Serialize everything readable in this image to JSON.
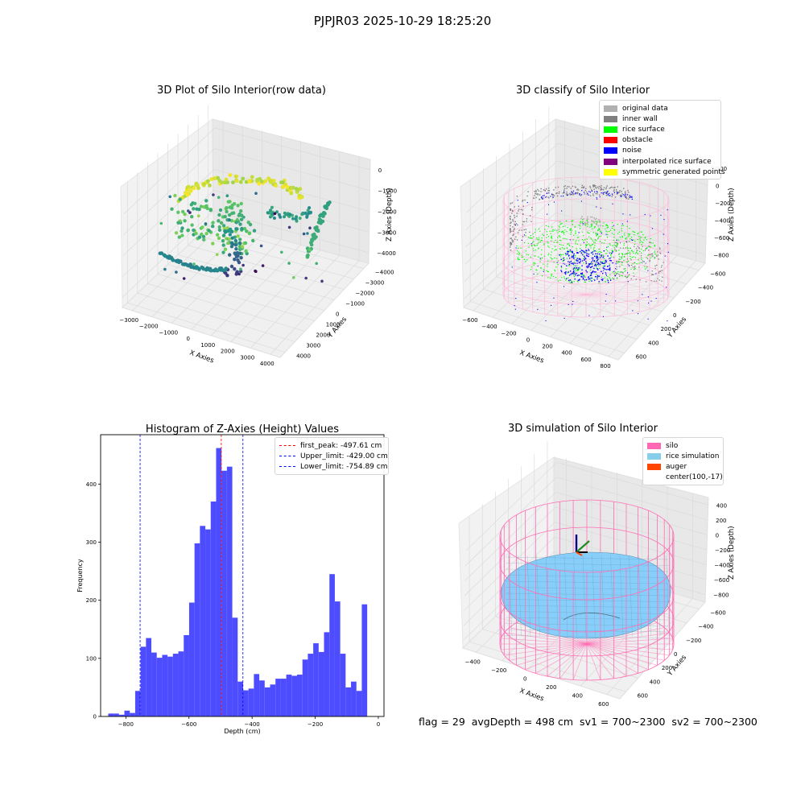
{
  "figure": {
    "suptitle": "PJPJR03 2025-10-29 18:25:20",
    "status_line": "flag = 29  avgDepth = 498 cm  sv1 = 700~2300  sv2 = 700~2300"
  },
  "colors": {
    "histogram_bar": "#4d4dff",
    "silo_wire": "#ff6eb4",
    "rice_fill": "#87cefa",
    "inner_wall": "#808080",
    "rice_surface": "#00ff00",
    "noise": "#0000ff"
  },
  "chart_data": [
    {
      "type": "scatter",
      "title": "3D Plot of Silo Interior(row data)",
      "xlabel": "X Axies",
      "ylabel": "Y Axies",
      "zlabel": "Z Axies (Depth)",
      "x_ticks": [
        "−3000",
        "−2000",
        "−1000",
        "0",
        "1000",
        "2000",
        "3000",
        "4000"
      ],
      "y_ticks": [
        "−4000",
        "−3000",
        "−2000",
        "−1000",
        "0",
        "1000",
        "2000",
        "3000",
        "4000"
      ],
      "z_ticks": [
        "0",
        "−1000",
        "−2000",
        "−3000",
        "−4000"
      ],
      "colormap": "viridis"
    },
    {
      "type": "scatter",
      "title": "3D classify of Silo Interior",
      "xlabel": "X Axies",
      "ylabel": "Y Axies",
      "zlabel": "Z Axies (Depth)",
      "x_ticks": [
        "−600",
        "−400",
        "−200",
        "0",
        "200",
        "400",
        "600",
        "800"
      ],
      "y_ticks": [
        "−600",
        "−400",
        "−200",
        "0",
        "200",
        "400",
        "600"
      ],
      "z_ticks": [
        "200",
        "0",
        "−200",
        "−400",
        "−600",
        "−800"
      ],
      "z_top_partial": "00",
      "legend": [
        {
          "label": "original data",
          "color": "#b0b0b0"
        },
        {
          "label": "inner wall",
          "color": "#808080"
        },
        {
          "label": "rice surface",
          "color": "#00ff00"
        },
        {
          "label": "obstacle",
          "color": "#ff0000"
        },
        {
          "label": "noise",
          "color": "#0000ff"
        },
        {
          "label": "interpolated rice surface",
          "color": "#800080"
        },
        {
          "label": "symmetric generated points",
          "color": "#ffff00"
        }
      ]
    },
    {
      "type": "bar",
      "title": "Histogram of Z-Axies (Height) Values",
      "xlabel": "Depth (cm)",
      "ylabel": "Frequency",
      "xlim": [
        -880,
        18
      ],
      "ylim": [
        0,
        485
      ],
      "x_ticks": [
        {
          "v": -800,
          "label": "−800"
        },
        {
          "v": -600,
          "label": "−600"
        },
        {
          "v": -400,
          "label": "−400"
        },
        {
          "v": -200,
          "label": "−200"
        },
        {
          "v": 0,
          "label": "0"
        }
      ],
      "y_ticks": [
        {
          "v": 0,
          "label": "0"
        },
        {
          "v": 100,
          "label": "100"
        },
        {
          "v": 200,
          "label": "200"
        },
        {
          "v": 300,
          "label": "300"
        },
        {
          "v": 400,
          "label": "400"
        }
      ],
      "bin_start": -856,
      "bin_width": 17.1,
      "values": [
        5,
        5,
        3,
        10,
        6,
        44,
        120,
        135,
        110,
        101,
        106,
        103,
        108,
        112,
        140,
        196,
        298,
        328,
        322,
        370,
        462,
        423,
        430,
        170,
        60,
        45,
        48,
        73,
        62,
        50,
        55,
        65,
        65,
        72,
        70,
        72,
        98,
        108,
        126,
        111,
        145,
        245,
        198,
        108,
        50,
        60,
        44,
        193
      ],
      "legend": [
        {
          "label": "first_peak: -497.61 cm",
          "color": "#ff0000"
        },
        {
          "label": "Upper_limit: -429.00 cm",
          "color": "#0000ff"
        },
        {
          "label": "Lower_limit: -754.89 cm",
          "color": "#0000ff"
        }
      ],
      "vlines": [
        {
          "x": -497.61,
          "color": "#ff0000"
        },
        {
          "x": -429.0,
          "color": "#0000ff"
        },
        {
          "x": -754.89,
          "color": "#0000ff"
        }
      ]
    },
    {
      "type": "surface",
      "title": "3D simulation of Silo Interior",
      "xlabel": "X Axies",
      "ylabel": "Y Axies",
      "zlabel": "Z Axies (Depth)",
      "x_ticks": [
        "−400",
        "−200",
        "0",
        "200",
        "400",
        "600"
      ],
      "y_ticks": [
        "−600",
        "−400",
        "−200",
        "0",
        "200",
        "400",
        "600"
      ],
      "z_ticks": [
        "400",
        "200",
        "0",
        "−200",
        "−400",
        "−600",
        "−800"
      ],
      "legend": [
        {
          "label": "silo",
          "color": "#ff69b4"
        },
        {
          "label": "rice simulation",
          "color": "#87ceeb"
        },
        {
          "label": "auger",
          "color": "#ff4500"
        },
        {
          "label": "center(100,-17)",
          "color": ""
        }
      ]
    }
  ]
}
